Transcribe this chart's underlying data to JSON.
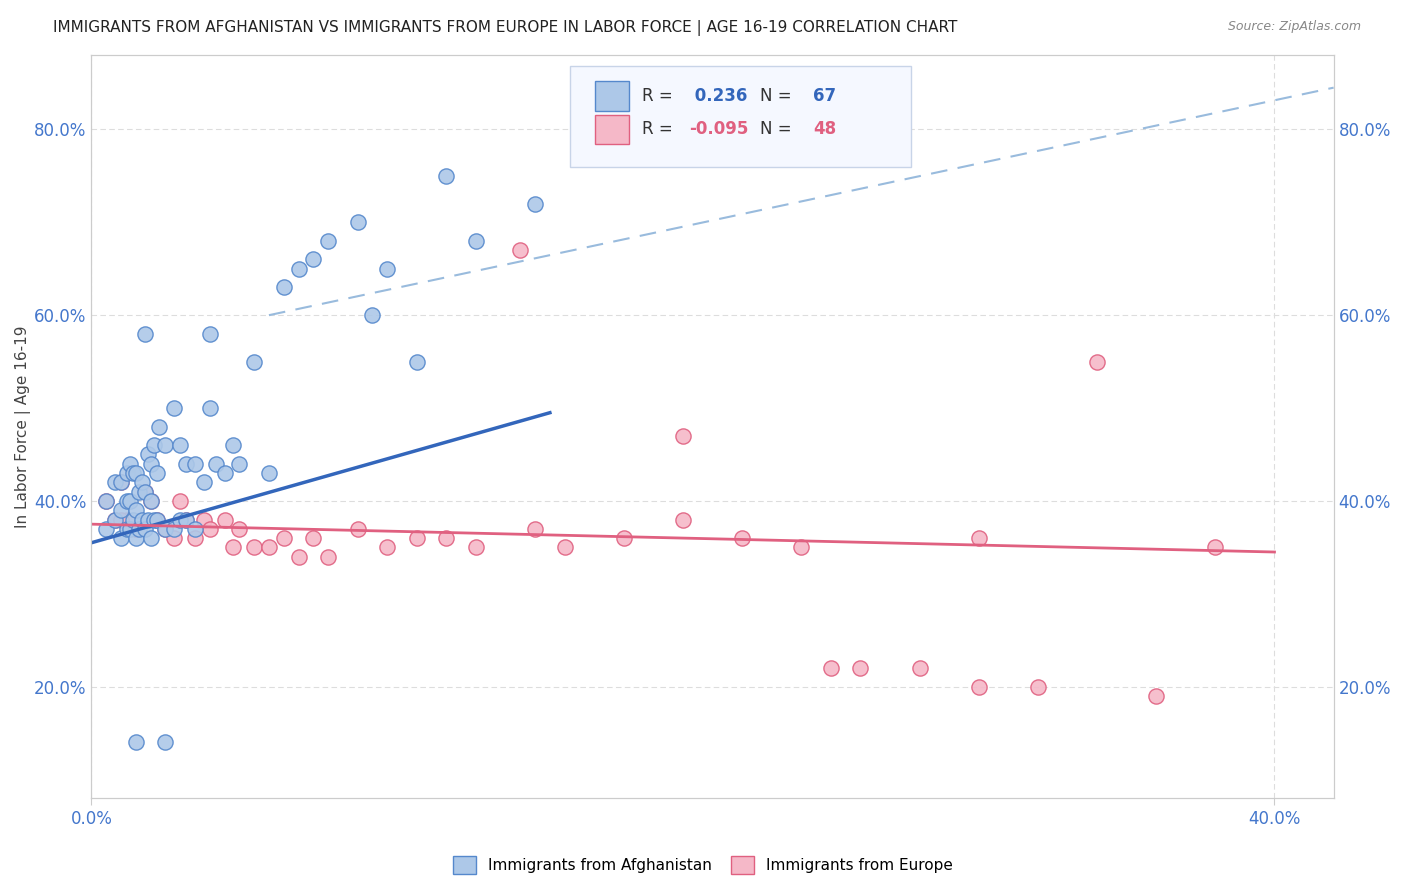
{
  "title": "IMMIGRANTS FROM AFGHANISTAN VS IMMIGRANTS FROM EUROPE IN LABOR FORCE | AGE 16-19 CORRELATION CHART",
  "source": "Source: ZipAtlas.com",
  "ylabel": "In Labor Force | Age 16-19",
  "xlim": [
    0.0,
    0.42
  ],
  "ylim": [
    0.08,
    0.88
  ],
  "xtick_positions": [
    0.0,
    0.4
  ],
  "xtick_labels": [
    "0.0%",
    "40.0%"
  ],
  "ytick_positions": [
    0.2,
    0.4,
    0.6,
    0.8
  ],
  "ytick_labels": [
    "20.0%",
    "40.0%",
    "60.0%",
    "80.0%"
  ],
  "r_afg": 0.236,
  "n_afg": 67,
  "r_eur": -0.095,
  "n_eur": 48,
  "color_afg_fill": "#adc8e8",
  "color_afg_edge": "#5588cc",
  "color_afg_line": "#3366bb",
  "color_eur_fill": "#f5b8c8",
  "color_eur_edge": "#e06080",
  "color_eur_line": "#e06080",
  "color_dashed": "#99bbdd",
  "tick_color": "#4477cc",
  "grid_color": "#dddddd",
  "bg_color": "#ffffff",
  "legend_bg": "#f5f8ff",
  "legend_edge": "#c8d4e8",
  "scatter_afg_x": [
    0.005,
    0.005,
    0.008,
    0.008,
    0.01,
    0.01,
    0.01,
    0.012,
    0.012,
    0.012,
    0.013,
    0.013,
    0.013,
    0.014,
    0.014,
    0.015,
    0.015,
    0.015,
    0.016,
    0.016,
    0.017,
    0.017,
    0.018,
    0.018,
    0.019,
    0.019,
    0.02,
    0.02,
    0.02,
    0.021,
    0.021,
    0.022,
    0.022,
    0.023,
    0.025,
    0.025,
    0.028,
    0.028,
    0.03,
    0.03,
    0.032,
    0.032,
    0.035,
    0.035,
    0.038,
    0.04,
    0.042,
    0.045,
    0.048,
    0.05,
    0.055,
    0.06,
    0.065,
    0.07,
    0.075,
    0.08,
    0.09,
    0.095,
    0.1,
    0.11,
    0.12,
    0.13,
    0.15,
    0.018,
    0.04,
    0.025,
    0.015
  ],
  "scatter_afg_y": [
    0.37,
    0.4,
    0.38,
    0.42,
    0.36,
    0.39,
    0.42,
    0.37,
    0.4,
    0.43,
    0.37,
    0.4,
    0.44,
    0.38,
    0.43,
    0.36,
    0.39,
    0.43,
    0.37,
    0.41,
    0.38,
    0.42,
    0.37,
    0.41,
    0.38,
    0.45,
    0.36,
    0.4,
    0.44,
    0.38,
    0.46,
    0.38,
    0.43,
    0.48,
    0.37,
    0.46,
    0.37,
    0.5,
    0.38,
    0.46,
    0.38,
    0.44,
    0.37,
    0.44,
    0.42,
    0.5,
    0.44,
    0.43,
    0.46,
    0.44,
    0.55,
    0.43,
    0.63,
    0.65,
    0.66,
    0.68,
    0.7,
    0.6,
    0.65,
    0.55,
    0.75,
    0.68,
    0.72,
    0.58,
    0.58,
    0.14,
    0.14
  ],
  "scatter_eur_x": [
    0.005,
    0.008,
    0.01,
    0.012,
    0.015,
    0.018,
    0.02,
    0.022,
    0.025,
    0.028,
    0.03,
    0.032,
    0.035,
    0.038,
    0.04,
    0.045,
    0.048,
    0.05,
    0.055,
    0.06,
    0.065,
    0.07,
    0.075,
    0.08,
    0.09,
    0.1,
    0.11,
    0.12,
    0.13,
    0.15,
    0.16,
    0.18,
    0.2,
    0.22,
    0.24,
    0.26,
    0.28,
    0.3,
    0.32,
    0.34,
    0.36,
    0.38,
    0.145,
    0.2,
    0.25,
    0.3,
    0.01,
    0.015
  ],
  "scatter_eur_y": [
    0.4,
    0.38,
    0.42,
    0.38,
    0.37,
    0.41,
    0.4,
    0.38,
    0.37,
    0.36,
    0.4,
    0.38,
    0.36,
    0.38,
    0.37,
    0.38,
    0.35,
    0.37,
    0.35,
    0.35,
    0.36,
    0.34,
    0.36,
    0.34,
    0.37,
    0.35,
    0.36,
    0.36,
    0.35,
    0.37,
    0.35,
    0.36,
    0.38,
    0.36,
    0.35,
    0.22,
    0.22,
    0.36,
    0.2,
    0.55,
    0.19,
    0.35,
    0.67,
    0.47,
    0.22,
    0.2,
    0.38,
    0.37
  ],
  "afg_line_x": [
    0.0,
    0.155
  ],
  "afg_line_y": [
    0.355,
    0.495
  ],
  "eur_line_x": [
    0.0,
    0.4
  ],
  "eur_line_y": [
    0.375,
    0.345
  ],
  "dash_line_x": [
    0.06,
    0.42
  ],
  "dash_line_y": [
    0.6,
    0.845
  ]
}
